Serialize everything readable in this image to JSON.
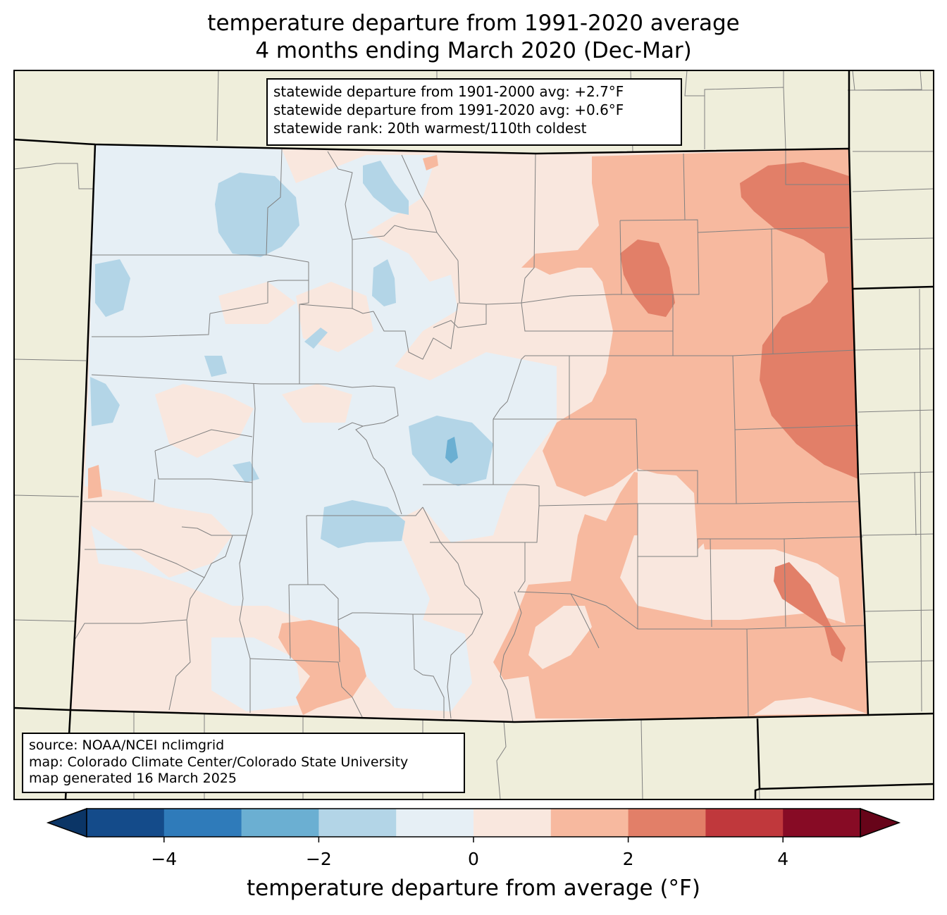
{
  "title": {
    "line1": "temperature departure from 1991-2020 average",
    "line2": "4 months ending March 2020 (Dec-Mar)"
  },
  "stats": {
    "line1": "statewide departure from 1901-2000 avg: +2.7°F",
    "line2": "statewide departure from 1991-2020 avg: +0.6°F",
    "line3": "statewide rank: 20th warmest/110th coldest"
  },
  "source": {
    "line1": "source: NOAA/NCEI nclimgrid",
    "line2": "map: Colorado Climate Center/Colorado State University",
    "line3": "map generated 16 March 2025"
  },
  "colorbar": {
    "label": "temperature departure from average (°F)",
    "tick_labels": [
      "−4",
      "−2",
      "0",
      "2",
      "4"
    ],
    "tick_values": [
      -4,
      -2,
      0,
      2,
      4
    ],
    "range": [
      -5,
      5
    ],
    "bins": [
      {
        "from": -5,
        "to": -4,
        "color": "#144b8a"
      },
      {
        "from": -4,
        "to": -3,
        "color": "#2f7bba"
      },
      {
        "from": -3,
        "to": -2,
        "color": "#6bafd2"
      },
      {
        "from": -2,
        "to": -1,
        "color": "#b3d5e7"
      },
      {
        "from": -1,
        "to": 0,
        "color": "#e6eff5"
      },
      {
        "from": 0,
        "to": 1,
        "color": "#f9e7de"
      },
      {
        "from": 1,
        "to": 2,
        "color": "#f7b99f"
      },
      {
        "from": 2,
        "to": 3,
        "color": "#e27f68"
      },
      {
        "from": 3,
        "to": 4,
        "color": "#c0383c"
      },
      {
        "from": 4,
        "to": 5,
        "color": "#870b25"
      }
    ],
    "under_color": "#0b3566",
    "over_color": "#670419"
  },
  "colors": {
    "land_background": "#efeedb",
    "state_border": "#000000",
    "county_border": "#808080"
  }
}
